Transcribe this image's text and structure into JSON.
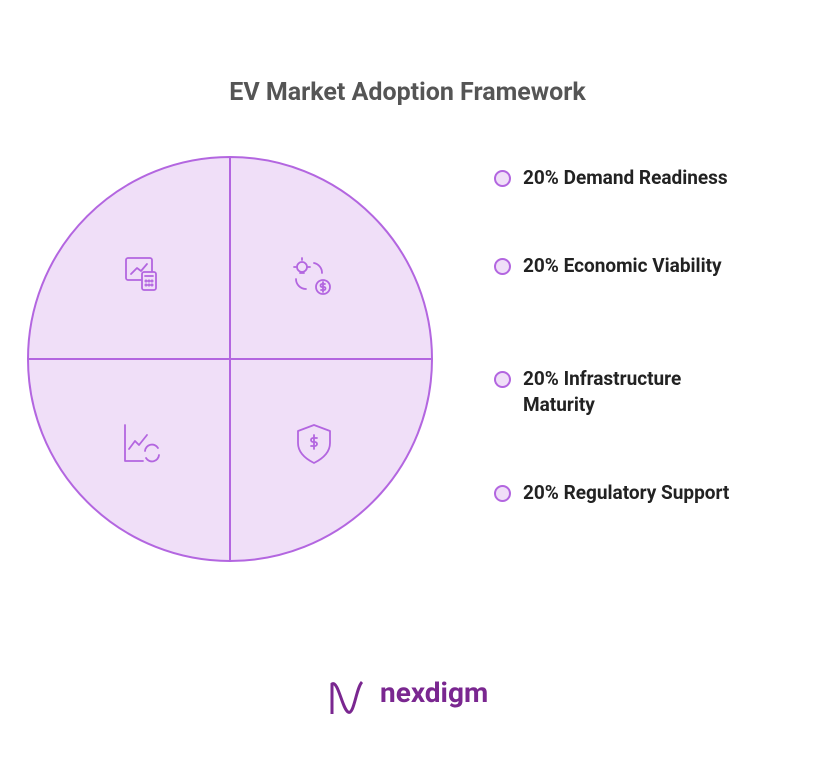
{
  "chart_data": {
    "type": "pie",
    "title": "EV Market Adoption Framework",
    "categories": [
      "Demand Readiness",
      "Economic Viability",
      "Infrastructure Maturity",
      "Regulatory Support"
    ],
    "values": [
      20,
      20,
      20,
      20
    ],
    "value_labels": [
      "20%",
      "20%",
      "20%",
      "20%"
    ],
    "color": "#f0dff8",
    "edge_color": "#b366e0"
  },
  "footer": {
    "logo": "nexdigm"
  }
}
